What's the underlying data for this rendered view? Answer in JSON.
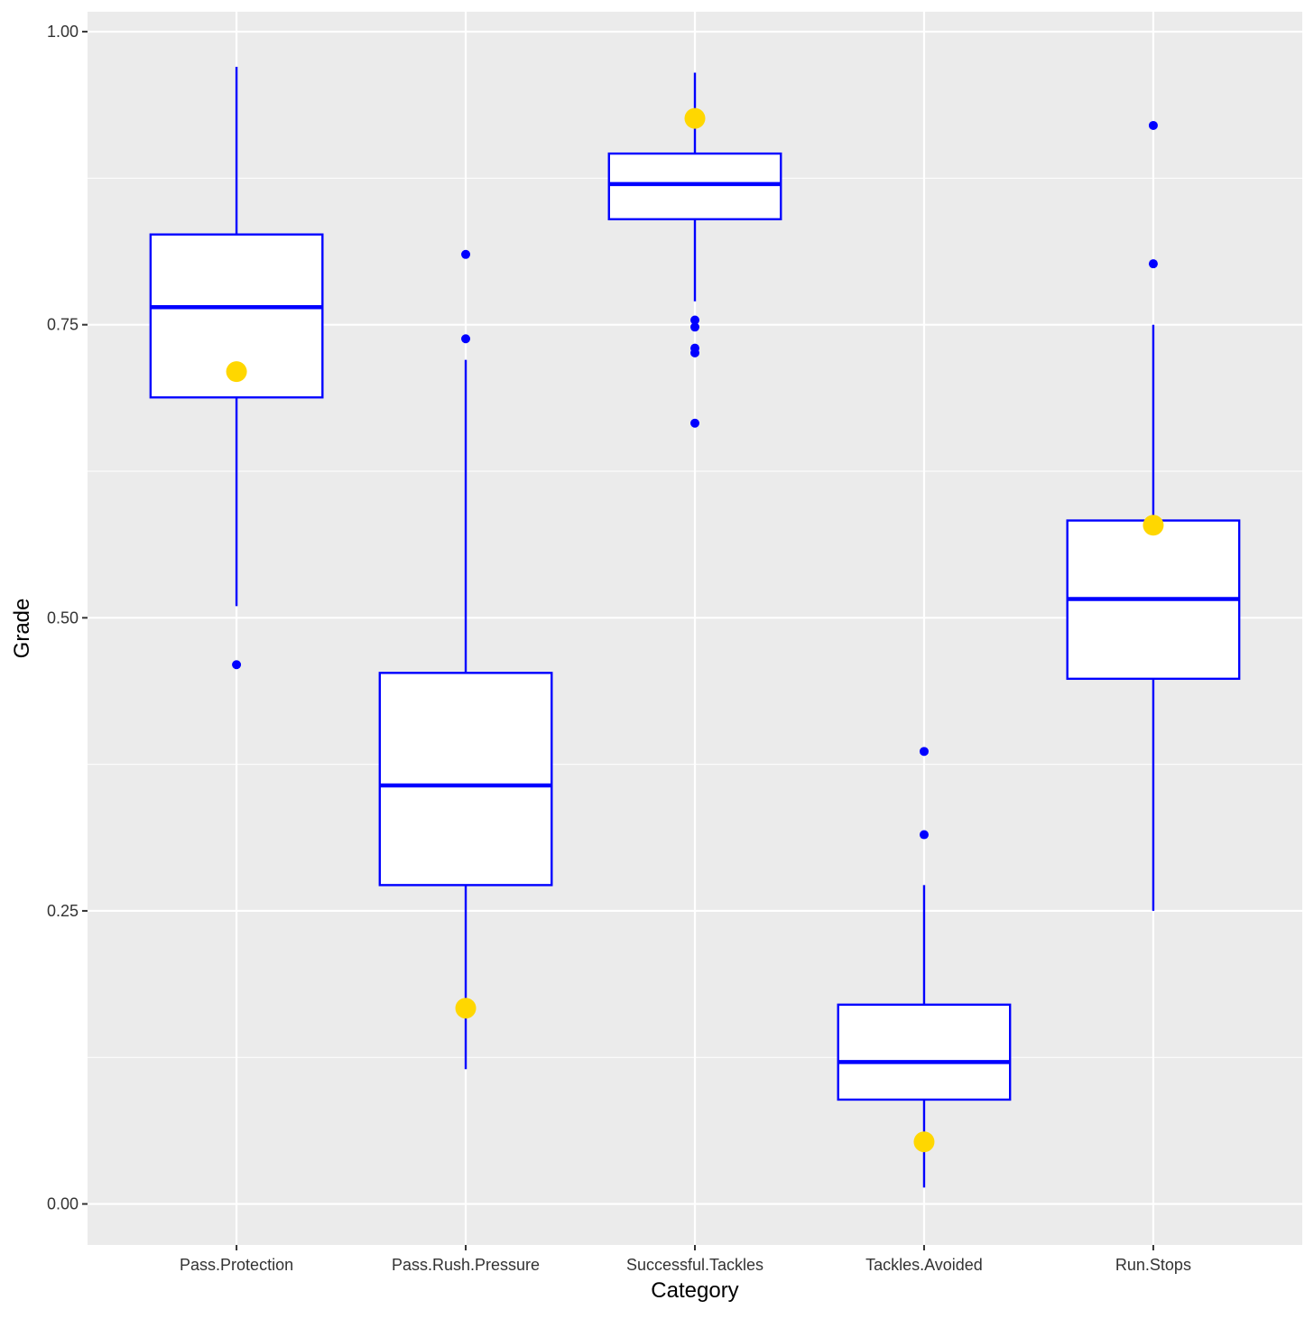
{
  "chart_data": {
    "type": "boxplot",
    "xlabel": "Category",
    "ylabel": "Grade",
    "ylim": [
      -0.035,
      1.017
    ],
    "yticks": [
      "0.00",
      "0.25",
      "0.50",
      "0.75",
      "1.00"
    ],
    "ytick_values": [
      0.0,
      0.25,
      0.5,
      0.75,
      1.0
    ],
    "categories": [
      "Pass.Protection",
      "Pass.Rush.Pressure",
      "Successful.Tackles",
      "Tackles.Avoided",
      "Run.Stops"
    ],
    "boxes": [
      {
        "category": "Pass.Protection",
        "whisker_low": 0.51,
        "q1": 0.688,
        "median": 0.765,
        "q3": 0.827,
        "whisker_high": 0.97,
        "outliers": [
          0.46
        ],
        "highlight": 0.71
      },
      {
        "category": "Pass.Rush.Pressure",
        "whisker_low": 0.115,
        "q1": 0.272,
        "median": 0.357,
        "q3": 0.453,
        "whisker_high": 0.72,
        "outliers": [
          0.81,
          0.738
        ],
        "highlight": 0.167
      },
      {
        "category": "Successful.Tackles",
        "whisker_low": 0.77,
        "q1": 0.84,
        "median": 0.87,
        "q3": 0.896,
        "whisker_high": 0.965,
        "outliers": [
          0.754,
          0.748,
          0.73,
          0.726,
          0.666
        ],
        "highlight": 0.926
      },
      {
        "category": "Tackles.Avoided",
        "whisker_low": 0.014,
        "q1": 0.089,
        "median": 0.121,
        "q3": 0.17,
        "whisker_high": 0.272,
        "outliers": [
          0.386,
          0.315
        ],
        "highlight": 0.053
      },
      {
        "category": "Run.Stops",
        "whisker_low": 0.25,
        "q1": 0.448,
        "median": 0.516,
        "q3": 0.583,
        "whisker_high": 0.75,
        "outliers": [
          0.92,
          0.802
        ],
        "highlight": 0.579
      }
    ],
    "colors": {
      "panel_bg": "#EBEBEB",
      "grid": "#FFFFFF",
      "box_line": "#0000FF",
      "box_fill": "#FFFFFF",
      "outlier": "#0000FF",
      "highlight": "#FFD700"
    }
  }
}
